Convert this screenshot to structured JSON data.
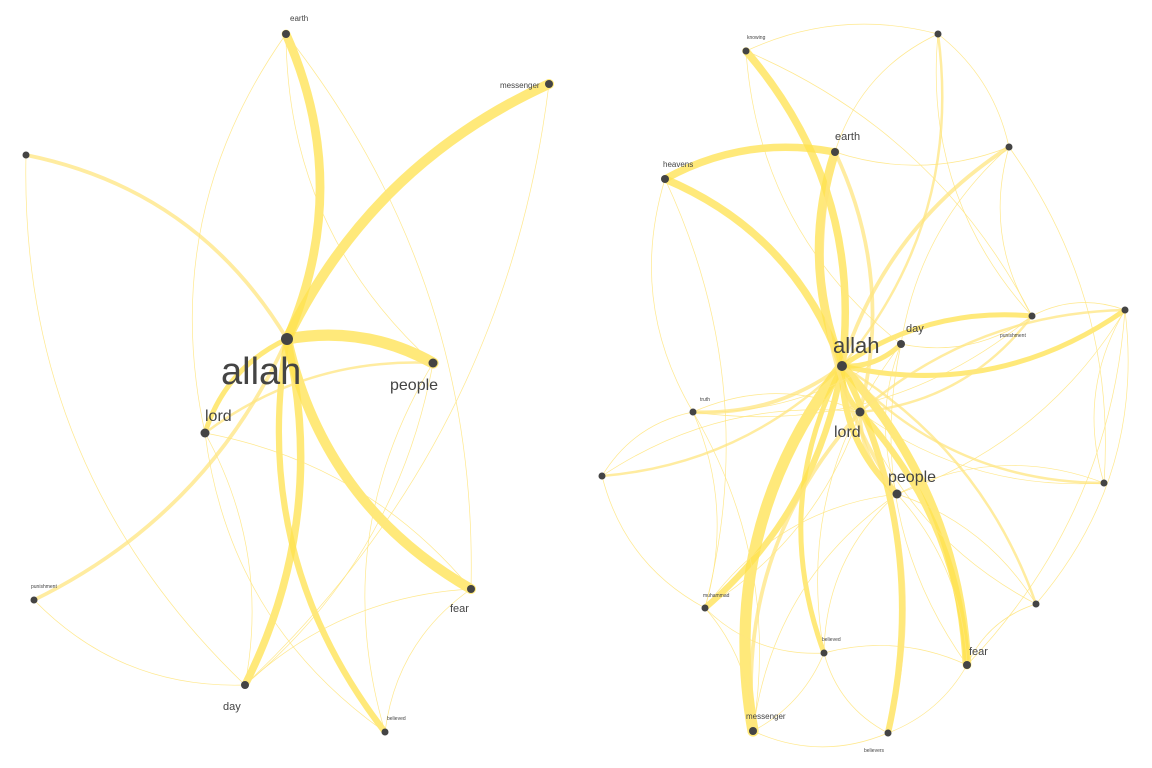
{
  "colors": {
    "edge": "#FFE680",
    "edge_strong": "#FFE14D",
    "node": "#444444",
    "label": "#444444",
    "background": "#ffffff"
  },
  "graphs": [
    {
      "id": "left",
      "nodes": [
        {
          "id": "allah",
          "label": "allah",
          "size": "xl"
        },
        {
          "id": "earth",
          "label": "earth",
          "size": "xs"
        },
        {
          "id": "messenger",
          "label": "messenger",
          "size": "xs"
        },
        {
          "id": "n1",
          "label": "",
          "size": "tiny"
        },
        {
          "id": "people",
          "label": "people",
          "size": "m"
        },
        {
          "id": "lord",
          "label": "lord",
          "size": "m"
        },
        {
          "id": "punishment",
          "label": "punishment",
          "size": "tiny"
        },
        {
          "id": "fear",
          "label": "fear",
          "size": "s"
        },
        {
          "id": "day",
          "label": "day",
          "size": "s"
        },
        {
          "id": "believed",
          "label": "believed",
          "size": "tiny"
        }
      ],
      "edges": [
        {
          "from": "allah",
          "to": "earth",
          "weight": 7
        },
        {
          "from": "allah",
          "to": "messenger",
          "weight": 8
        },
        {
          "from": "allah",
          "to": "n1",
          "weight": 3
        },
        {
          "from": "allah",
          "to": "people",
          "weight": 9
        },
        {
          "from": "allah",
          "to": "lord",
          "weight": 4
        },
        {
          "from": "allah",
          "to": "punishment",
          "weight": 3
        },
        {
          "from": "allah",
          "to": "fear",
          "weight": 8
        },
        {
          "from": "allah",
          "to": "day",
          "weight": 6
        },
        {
          "from": "allah",
          "to": "believed",
          "weight": 5
        },
        {
          "from": "lord",
          "to": "people",
          "weight": 2
        },
        {
          "from": "earth",
          "to": "people",
          "weight": 1
        },
        {
          "from": "earth",
          "to": "fear",
          "weight": 1
        },
        {
          "from": "earth",
          "to": "lord",
          "weight": 1
        },
        {
          "from": "messenger",
          "to": "day",
          "weight": 1
        },
        {
          "from": "n1",
          "to": "day",
          "weight": 1
        },
        {
          "from": "lord",
          "to": "fear",
          "weight": 1
        },
        {
          "from": "lord",
          "to": "believed",
          "weight": 1
        },
        {
          "from": "lord",
          "to": "day",
          "weight": 1
        },
        {
          "from": "punishment",
          "to": "day",
          "weight": 1
        },
        {
          "from": "day",
          "to": "fear",
          "weight": 1
        },
        {
          "from": "people",
          "to": "believed",
          "weight": 1
        },
        {
          "from": "people",
          "to": "day",
          "weight": 1
        },
        {
          "from": "fear",
          "to": "believed",
          "weight": 1
        }
      ]
    },
    {
      "id": "right",
      "nodes": [
        {
          "id": "allah",
          "label": "allah",
          "size": "l"
        },
        {
          "id": "knowing",
          "label": "knowing",
          "size": "tiny"
        },
        {
          "id": "n_top",
          "label": "",
          "size": "tiny"
        },
        {
          "id": "earth",
          "label": "earth",
          "size": "s"
        },
        {
          "id": "heavens",
          "label": "heavens",
          "size": "xs"
        },
        {
          "id": "n_tr",
          "label": "",
          "size": "tiny"
        },
        {
          "id": "day",
          "label": "day",
          "size": "s"
        },
        {
          "id": "punishment",
          "label": "punishment",
          "size": "tiny"
        },
        {
          "id": "n_far",
          "label": "",
          "size": "tiny"
        },
        {
          "id": "truth",
          "label": "truth",
          "size": "tiny"
        },
        {
          "id": "lord",
          "label": "lord",
          "size": "m"
        },
        {
          "id": "n_left",
          "label": "",
          "size": "tiny"
        },
        {
          "id": "people",
          "label": "people",
          "size": "m"
        },
        {
          "id": "n_r2",
          "label": "",
          "size": "tiny"
        },
        {
          "id": "muhammad",
          "label": "muhammad",
          "size": "tiny"
        },
        {
          "id": "n_r3",
          "label": "",
          "size": "tiny"
        },
        {
          "id": "believed",
          "label": "believed",
          "size": "tiny"
        },
        {
          "id": "fear",
          "label": "fear",
          "size": "s"
        },
        {
          "id": "messenger",
          "label": "messenger",
          "size": "xs"
        },
        {
          "id": "believers",
          "label": "believers",
          "size": "tiny"
        }
      ],
      "edges": [
        {
          "from": "allah",
          "to": "knowing",
          "weight": 6
        },
        {
          "from": "allah",
          "to": "earth",
          "weight": 7
        },
        {
          "from": "allah",
          "to": "heavens",
          "weight": 6
        },
        {
          "from": "heavens",
          "to": "earth",
          "weight": 6
        },
        {
          "from": "allah",
          "to": "n_top",
          "weight": 2
        },
        {
          "from": "allah",
          "to": "n_tr",
          "weight": 3
        },
        {
          "from": "allah",
          "to": "day",
          "weight": 4
        },
        {
          "from": "allah",
          "to": "punishment",
          "weight": 4
        },
        {
          "from": "allah",
          "to": "n_far",
          "weight": 4
        },
        {
          "from": "allah",
          "to": "truth",
          "weight": 3
        },
        {
          "from": "allah",
          "to": "lord",
          "weight": 4
        },
        {
          "from": "allah",
          "to": "n_left",
          "weight": 2
        },
        {
          "from": "allah",
          "to": "people",
          "weight": 5
        },
        {
          "from": "allah",
          "to": "muhammad",
          "weight": 5
        },
        {
          "from": "allah",
          "to": "believed",
          "weight": 4
        },
        {
          "from": "allah",
          "to": "fear",
          "weight": 7
        },
        {
          "from": "allah",
          "to": "messenger",
          "weight": 9
        },
        {
          "from": "allah",
          "to": "believers",
          "weight": 5
        },
        {
          "from": "allah",
          "to": "n_r2",
          "weight": 2
        },
        {
          "from": "allah",
          "to": "n_r3",
          "weight": 2
        },
        {
          "from": "earth",
          "to": "people",
          "weight": 3
        },
        {
          "from": "earth",
          "to": "lord",
          "weight": 3
        },
        {
          "from": "lord",
          "to": "people",
          "weight": 3
        },
        {
          "from": "lord",
          "to": "fear",
          "weight": 5
        },
        {
          "from": "lord",
          "to": "punishment",
          "weight": 2
        },
        {
          "from": "lord",
          "to": "n_far",
          "weight": 2
        },
        {
          "from": "lord",
          "to": "messenger",
          "weight": 3
        },
        {
          "from": "lord",
          "to": "believers",
          "weight": 2
        },
        {
          "from": "lord",
          "to": "truth",
          "weight": 1
        },
        {
          "from": "lord",
          "to": "muhammad",
          "weight": 1
        },
        {
          "from": "people",
          "to": "believed",
          "weight": 1
        },
        {
          "from": "people",
          "to": "n_r3",
          "weight": 1
        },
        {
          "from": "people",
          "to": "muhammad",
          "weight": 1
        },
        {
          "from": "people",
          "to": "fear",
          "weight": 1
        },
        {
          "from": "people",
          "to": "messenger",
          "weight": 1
        },
        {
          "from": "people",
          "to": "day",
          "weight": 1
        },
        {
          "from": "day",
          "to": "punishment",
          "weight": 1
        },
        {
          "from": "day",
          "to": "n_tr",
          "weight": 1
        },
        {
          "from": "day",
          "to": "fear",
          "weight": 1
        },
        {
          "from": "day",
          "to": "truth",
          "weight": 1
        },
        {
          "from": "day",
          "to": "believed",
          "weight": 1
        },
        {
          "from": "knowing",
          "to": "n_top",
          "weight": 1
        },
        {
          "from": "knowing",
          "to": "day",
          "weight": 1
        },
        {
          "from": "knowing",
          "to": "punishment",
          "weight": 1
        },
        {
          "from": "n_top",
          "to": "earth",
          "weight": 1
        },
        {
          "from": "n_top",
          "to": "n_tr",
          "weight": 1
        },
        {
          "from": "n_top",
          "to": "punishment",
          "weight": 1
        },
        {
          "from": "n_tr",
          "to": "earth",
          "weight": 1
        },
        {
          "from": "n_tr",
          "to": "punishment",
          "weight": 1
        },
        {
          "from": "n_tr",
          "to": "n_r2",
          "weight": 1
        },
        {
          "from": "heavens",
          "to": "truth",
          "weight": 1
        },
        {
          "from": "heavens",
          "to": "muhammad",
          "weight": 1
        },
        {
          "from": "truth",
          "to": "n_left",
          "weight": 1
        },
        {
          "from": "truth",
          "to": "muhammad",
          "weight": 1
        },
        {
          "from": "truth",
          "to": "punishment",
          "weight": 1
        },
        {
          "from": "truth",
          "to": "messenger",
          "weight": 1
        },
        {
          "from": "n_far",
          "to": "punishment",
          "weight": 1
        },
        {
          "from": "n_far",
          "to": "people",
          "weight": 1
        },
        {
          "from": "n_far",
          "to": "n_r2",
          "weight": 1
        },
        {
          "from": "n_far",
          "to": "fear",
          "weight": 1
        },
        {
          "from": "n_r2",
          "to": "people",
          "weight": 1
        },
        {
          "from": "n_r2",
          "to": "lord",
          "weight": 1
        },
        {
          "from": "n_r3",
          "to": "fear",
          "weight": 1
        },
        {
          "from": "n_r3",
          "to": "lord",
          "weight": 1
        },
        {
          "from": "n_r3",
          "to": "n_far",
          "weight": 1
        },
        {
          "from": "muhammad",
          "to": "messenger",
          "weight": 1
        },
        {
          "from": "muhammad",
          "to": "believed",
          "weight": 1
        },
        {
          "from": "believed",
          "to": "fear",
          "weight": 1
        },
        {
          "from": "believed",
          "to": "believers",
          "weight": 1
        },
        {
          "from": "believed",
          "to": "messenger",
          "weight": 1
        },
        {
          "from": "messenger",
          "to": "believers",
          "weight": 1
        },
        {
          "from": "fear",
          "to": "believers",
          "weight": 1
        },
        {
          "from": "n_left",
          "to": "muhammad",
          "weight": 1
        },
        {
          "from": "n_left",
          "to": "lord",
          "weight": 1
        }
      ]
    }
  ]
}
